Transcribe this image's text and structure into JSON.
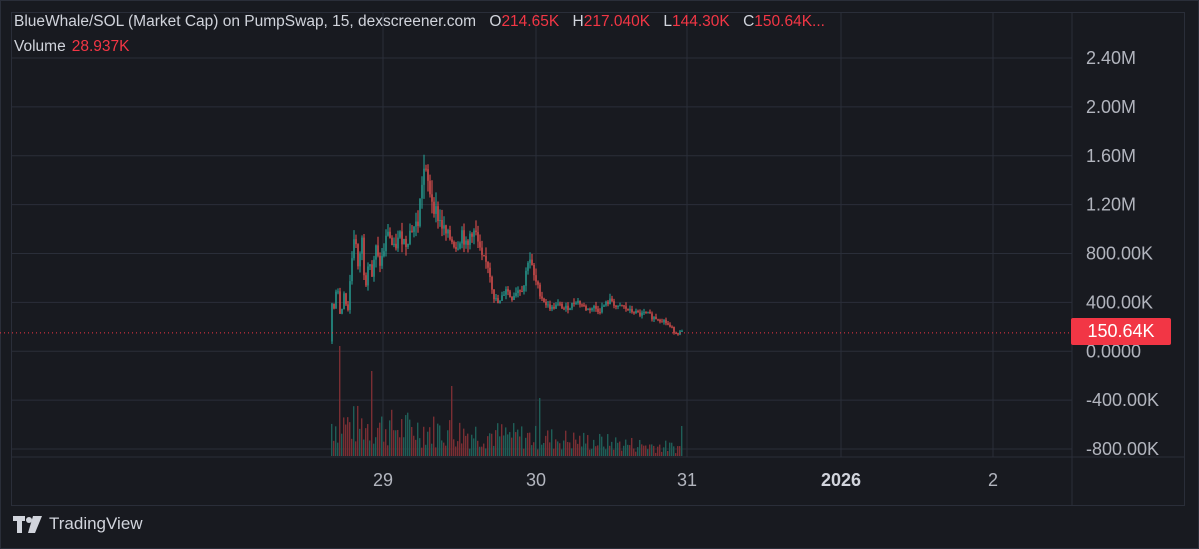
{
  "header": {
    "title": "BlueWhale/SOL (Market Cap) on PumpSwap, 15, dexscreener.com",
    "ohlc": [
      {
        "key": "O",
        "value": "214.65K"
      },
      {
        "key": "H",
        "value": "217.040K"
      },
      {
        "key": "L",
        "value": "144.30K"
      },
      {
        "key": "C",
        "value": "150.64K..."
      }
    ],
    "volume_label": "Volume",
    "volume_value": "28.937K"
  },
  "price_axis": {
    "ticks": [
      "2.40M",
      "2.00M",
      "1.60M",
      "1.20M",
      "800.00K",
      "400.00K",
      "0.0000",
      "-400.00K",
      "-800.00K"
    ],
    "last_price_tag": "150.64K"
  },
  "time_axis": {
    "ticks": [
      {
        "label": "29",
        "bold": false
      },
      {
        "label": "30",
        "bold": false
      },
      {
        "label": "31",
        "bold": false
      },
      {
        "label": "2026",
        "bold": true
      },
      {
        "label": "2",
        "bold": false
      }
    ]
  },
  "brand": {
    "name": "TradingView"
  },
  "colors": {
    "up": "#26a69a",
    "down": "#ef5350",
    "background": "#181a20",
    "grid": "#2a2e39",
    "price_line": "#f23645"
  },
  "chart_data": {
    "type": "candlestick",
    "title": "BlueWhale/SOL (Market Cap) on PumpSwap, 15, dexscreener.com",
    "ylim": [
      -900000,
      2600000
    ],
    "series": [
      {
        "name": "Market Cap",
        "type": "line",
        "x": [
          0.0,
          0.01,
          0.02,
          0.04,
          0.06,
          0.08,
          0.1,
          0.12,
          0.14,
          0.16,
          0.18,
          0.2,
          0.22,
          0.24,
          0.26,
          0.28,
          0.3,
          0.33,
          0.36,
          0.4,
          0.43,
          0.46,
          0.5,
          0.53,
          0.55,
          0.58,
          0.6,
          0.63,
          0.66,
          0.7,
          0.72,
          0.75,
          0.78,
          0.8,
          0.83,
          0.86,
          0.9,
          0.93,
          0.96,
          1.0,
          1.03,
          1.06,
          1.1,
          1.13,
          1.16,
          1.2,
          1.23,
          1.26,
          1.28,
          1.3,
          1.33,
          1.36,
          1.4,
          1.43,
          1.46,
          1.5,
          1.53,
          1.56,
          1.6,
          1.63,
          1.66,
          1.7,
          1.73,
          1.76,
          1.8,
          1.83,
          1.86,
          1.9,
          1.93,
          1.96,
          2.0
        ],
        "values": [
          80000,
          400000,
          300000,
          600000,
          250000,
          500000,
          300000,
          700000,
          1000000,
          650000,
          950000,
          500000,
          800000,
          600000,
          850000,
          700000,
          780000,
          1000000,
          820000,
          950000,
          880000,
          1000000,
          1050000,
          1500000,
          1400000,
          1250000,
          1150000,
          1050000,
          950000,
          900000,
          850000,
          980000,
          820000,
          1000000,
          950000,
          760000,
          700000,
          450000,
          380000,
          520000,
          430000,
          500000,
          520000,
          800000,
          600000,
          450000,
          380000,
          350000,
          370000,
          380000,
          350000,
          360000,
          420000,
          380000,
          340000,
          360000,
          330000,
          380000,
          420000,
          350000,
          370000,
          330000,
          320000,
          300000,
          310000,
          280000,
          270000,
          250000,
          200000,
          160000,
          150640
        ]
      }
    ],
    "volume_note": "Volume histogram beneath price, peak volume early then declining",
    "last_value": 150640,
    "x_ticks": [
      "29",
      "30",
      "31",
      "2026",
      "2"
    ]
  }
}
